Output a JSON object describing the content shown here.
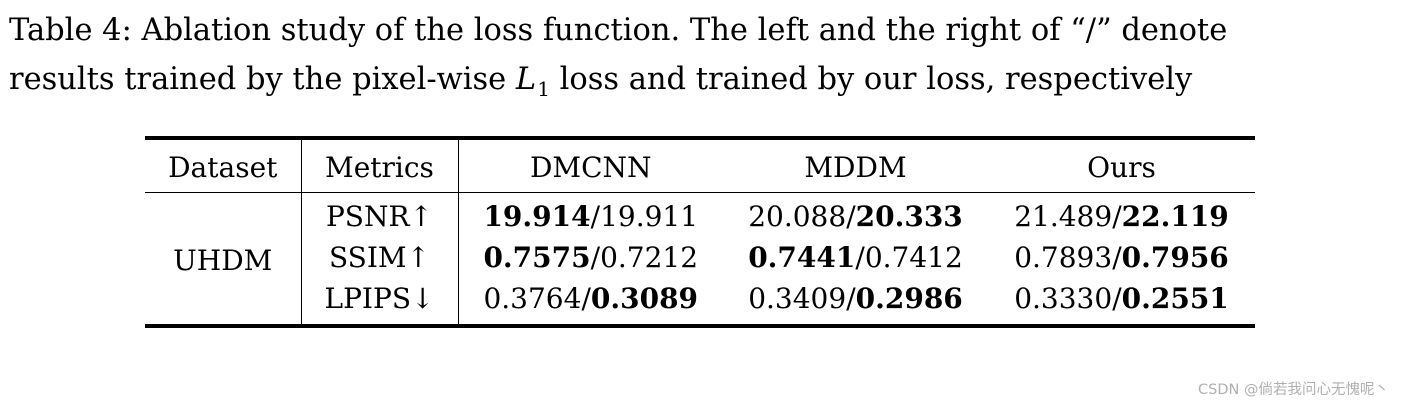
{
  "caption": {
    "line1": "Table 4: Ablation study of the loss function. The left and the right of “/” denote",
    "line2_before": "results trained by the pixel-wise ",
    "math_var": "L",
    "math_sub": "1",
    "line2_after": " loss and trained by our loss, respectively"
  },
  "table": {
    "headers": [
      "Dataset",
      "Metrics",
      "DMCNN",
      "MDDM",
      "Ours"
    ],
    "dataset": "UHDM",
    "rows": [
      {
        "metric": "PSNR↑",
        "cells": [
          {
            "left": "19.914",
            "right": "19.911",
            "bold": "left"
          },
          {
            "left": "20.088",
            "right": "20.333",
            "bold": "right"
          },
          {
            "left": "21.489",
            "right": "22.119",
            "bold": "right"
          }
        ]
      },
      {
        "metric": "SSIM↑",
        "cells": [
          {
            "left": "0.7575",
            "right": "0.7212",
            "bold": "left"
          },
          {
            "left": "0.7441",
            "right": "0.7412",
            "bold": "left"
          },
          {
            "left": "0.7893",
            "right": "0.7956",
            "bold": "right"
          }
        ]
      },
      {
        "metric": "LPIPS↓",
        "cells": [
          {
            "left": "0.3764",
            "right": "0.3089",
            "bold": "right"
          },
          {
            "left": "0.3409",
            "right": "0.2986",
            "bold": "right"
          },
          {
            "left": "0.3330",
            "right": "0.2551",
            "bold": "right"
          }
        ]
      }
    ],
    "separator": "/"
  },
  "watermark": "CSDN @倘若我问心无愧呢丶"
}
